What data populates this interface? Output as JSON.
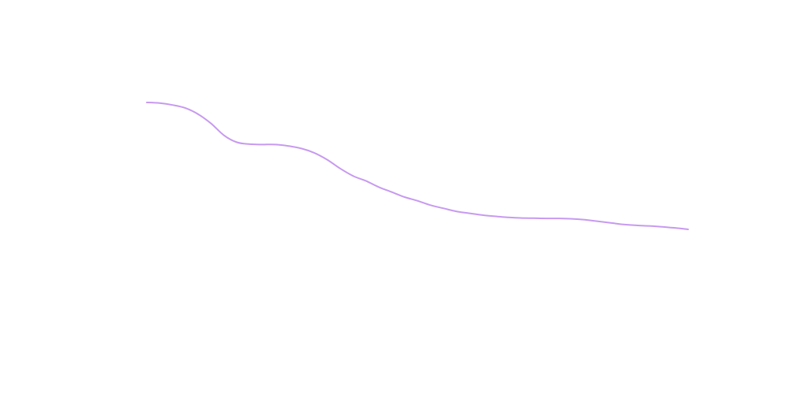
{
  "chart_data": {
    "type": "line",
    "title": "",
    "xlabel": "",
    "ylabel": "",
    "grid": false,
    "axes_visible": false,
    "legend": "none",
    "x": [
      0,
      1,
      2,
      3,
      4,
      5,
      6,
      7,
      8,
      9,
      10,
      11,
      12,
      13,
      14,
      15,
      16,
      17,
      18,
      19,
      20,
      21,
      22,
      23,
      24,
      25,
      26,
      27,
      28,
      29,
      30,
      31,
      32,
      33,
      34,
      35,
      36,
      37,
      38,
      39,
      40,
      41,
      42
    ],
    "series": [
      {
        "color": "#c79af0",
        "values": [
          0.0,
          0.5,
          2.0,
          4.5,
          9.5,
          17.0,
          26.5,
          32.0,
          33.5,
          33.8,
          33.8,
          35.0,
          37.0,
          40.5,
          46.0,
          53.0,
          59.0,
          63.0,
          68.0,
          72.0,
          76.0,
          79.0,
          82.5,
          85.0,
          87.5,
          89.0,
          90.5,
          91.5,
          92.3,
          92.8,
          93.0,
          93.2,
          93.2,
          93.5,
          94.3,
          95.5,
          96.8,
          98.0,
          98.8,
          99.2,
          100.0,
          100.8,
          102.0
        ]
      }
    ],
    "xlim": [
      0,
      42
    ],
    "ylim": [
      0,
      102
    ]
  },
  "colors": {
    "background": "#ffffff",
    "line": "#c79af0"
  }
}
